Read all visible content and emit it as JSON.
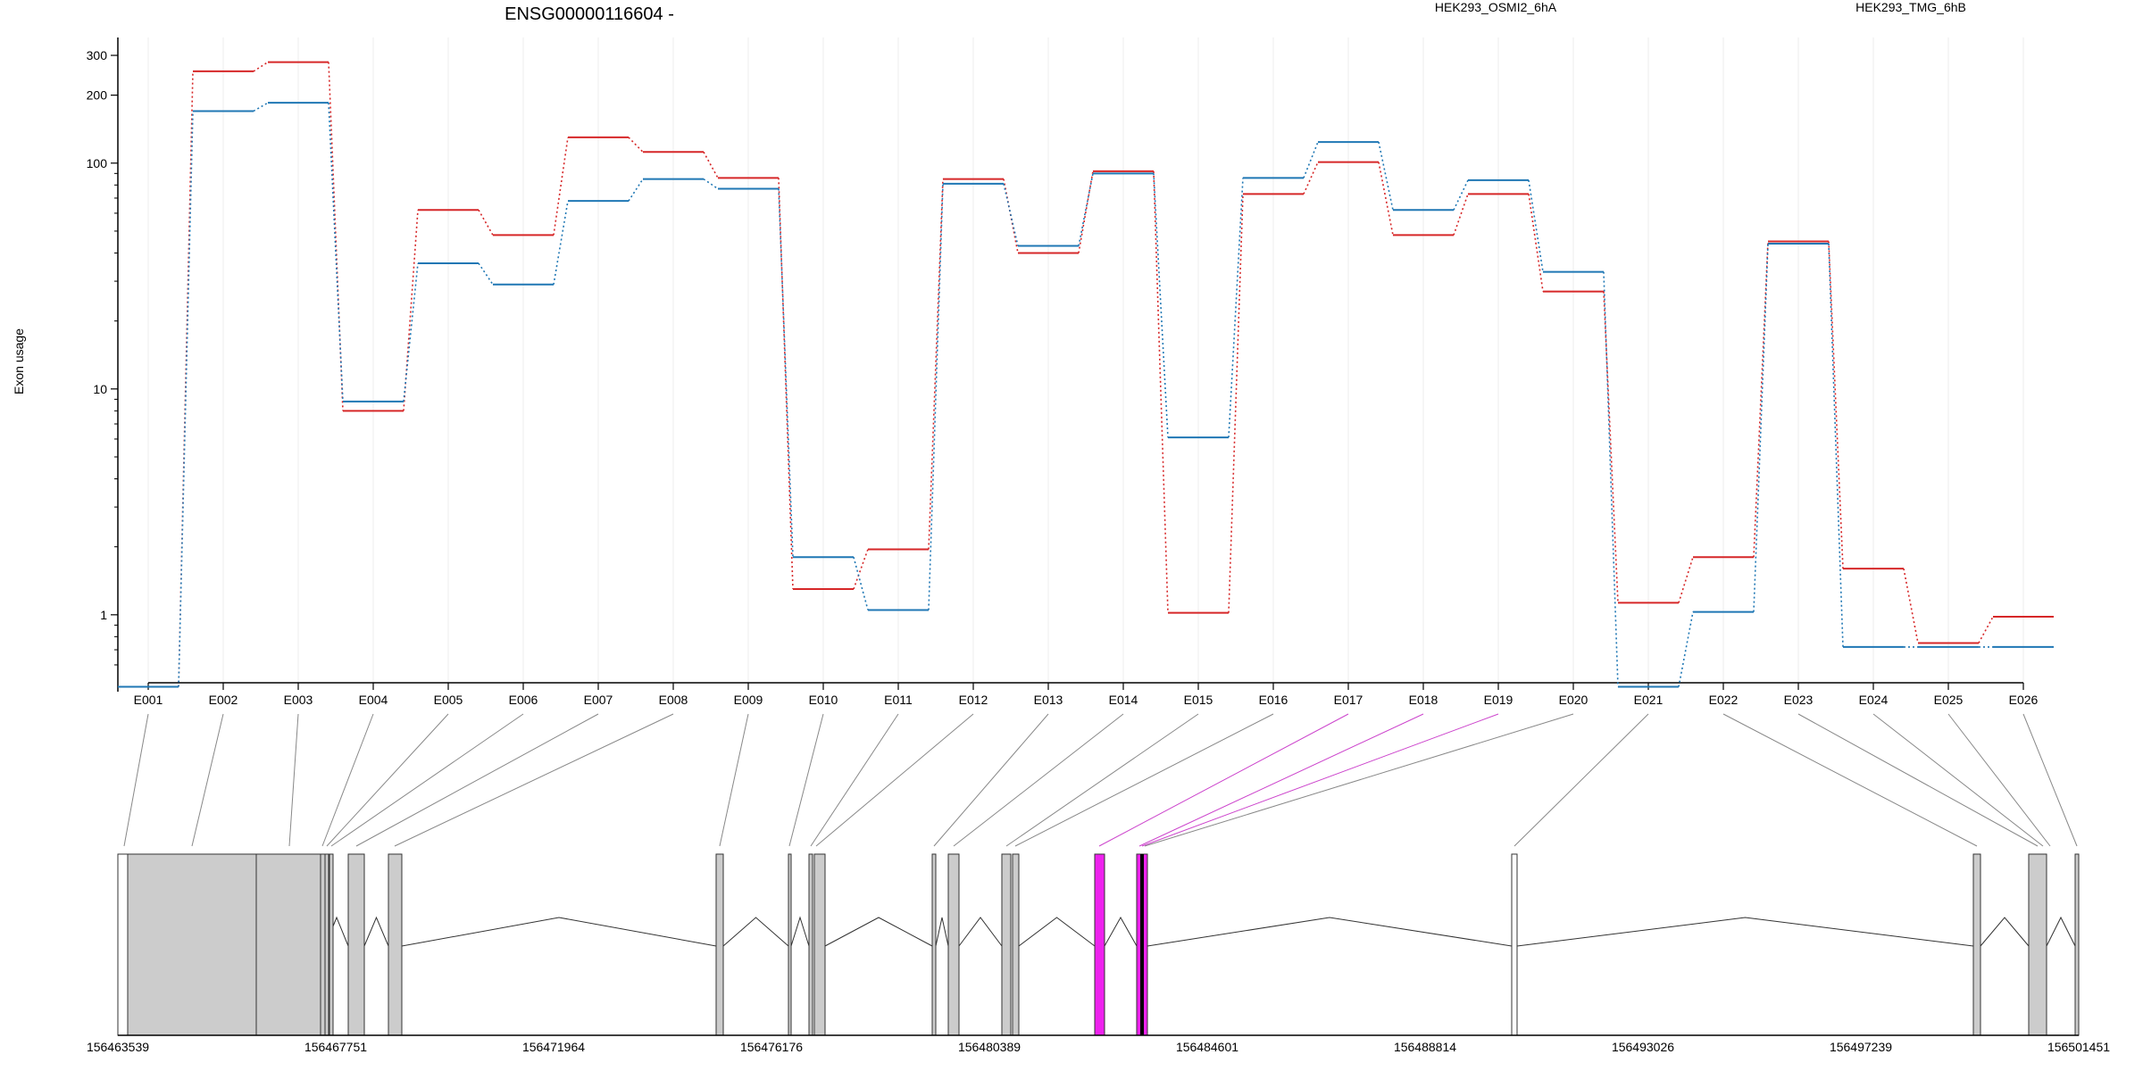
{
  "chart_data": {
    "type": "line",
    "title": "ENSG00000116604 -",
    "ylabel": "Exon usage",
    "yscale": "log",
    "ylim": [
      0.5,
      360
    ],
    "yticks": [
      1,
      10,
      100,
      200,
      300
    ],
    "ytick_labels": [
      "1",
      "10",
      "100",
      "200",
      "300"
    ],
    "categories": [
      "E001",
      "E002",
      "E003",
      "E004",
      "E005",
      "E006",
      "E007",
      "E008",
      "E009",
      "E010",
      "E011",
      "E012",
      "E013",
      "E014",
      "E015",
      "E016",
      "E017",
      "E018",
      "E019",
      "E020",
      "E021",
      "E022",
      "E023",
      "E024",
      "E025",
      "E026"
    ],
    "series": [
      {
        "name": "HEK293_OSMI2_6hA",
        "color": "#d62728",
        "values": [
          0.48,
          255,
          280,
          8,
          62,
          48,
          130,
          112,
          86,
          1.3,
          1.95,
          85,
          40,
          92,
          1.02,
          73,
          101,
          48,
          73,
          27,
          1.13,
          1.8,
          45,
          1.6,
          0.75,
          0.98
        ]
      },
      {
        "name": "HEK293_TMG_6hB",
        "color": "#1f77b4",
        "values": [
          0.48,
          170,
          185,
          8.8,
          36,
          29,
          68,
          85,
          77,
          1.8,
          1.05,
          81,
          43,
          90,
          6.1,
          86,
          124,
          62,
          84,
          33,
          0.48,
          1.03,
          44,
          0.72,
          0.72,
          0.72
        ]
      }
    ],
    "gene_model": {
      "coordinate_labels": [
        "156463539",
        "156467751",
        "156471964",
        "156476176",
        "156480389",
        "156484601",
        "156488814",
        "156493026",
        "156497239",
        "156501451"
      ],
      "highlight_color": "#ee22ee",
      "highlighted_exons": [
        "E017",
        "E018",
        "E019"
      ]
    }
  }
}
